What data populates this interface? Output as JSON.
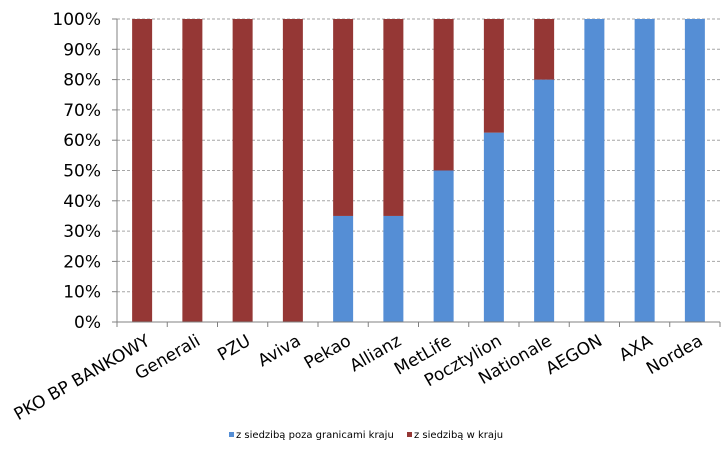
{
  "chart_data": {
    "type": "bar",
    "stacked": true,
    "percent": true,
    "categories": [
      "PKO BP BANKOWY",
      "Generali",
      "PZU",
      "Aviva",
      "Pekao",
      "Allianz",
      "MetLife",
      "Pocztylion",
      "Nationale",
      "AEGON",
      "AXA",
      "Nordea"
    ],
    "series": [
      {
        "name": "z siedzibą poza granicami kraju",
        "color": "#558ed5",
        "values": [
          0,
          0,
          0,
          0,
          35,
          35,
          50,
          62.5,
          80,
          100,
          100,
          100
        ]
      },
      {
        "name": "z siedzibą w kraju",
        "color": "#953735",
        "values": [
          100,
          100,
          100,
          100,
          65,
          65,
          50,
          37.5,
          20,
          0,
          0,
          0
        ]
      }
    ],
    "y_ticks": [
      "0%",
      "10%",
      "20%",
      "30%",
      "40%",
      "50%",
      "60%",
      "70%",
      "80%",
      "90%",
      "100%"
    ],
    "ylim": [
      0,
      100
    ],
    "grid": true,
    "legend_position": "bottom"
  }
}
